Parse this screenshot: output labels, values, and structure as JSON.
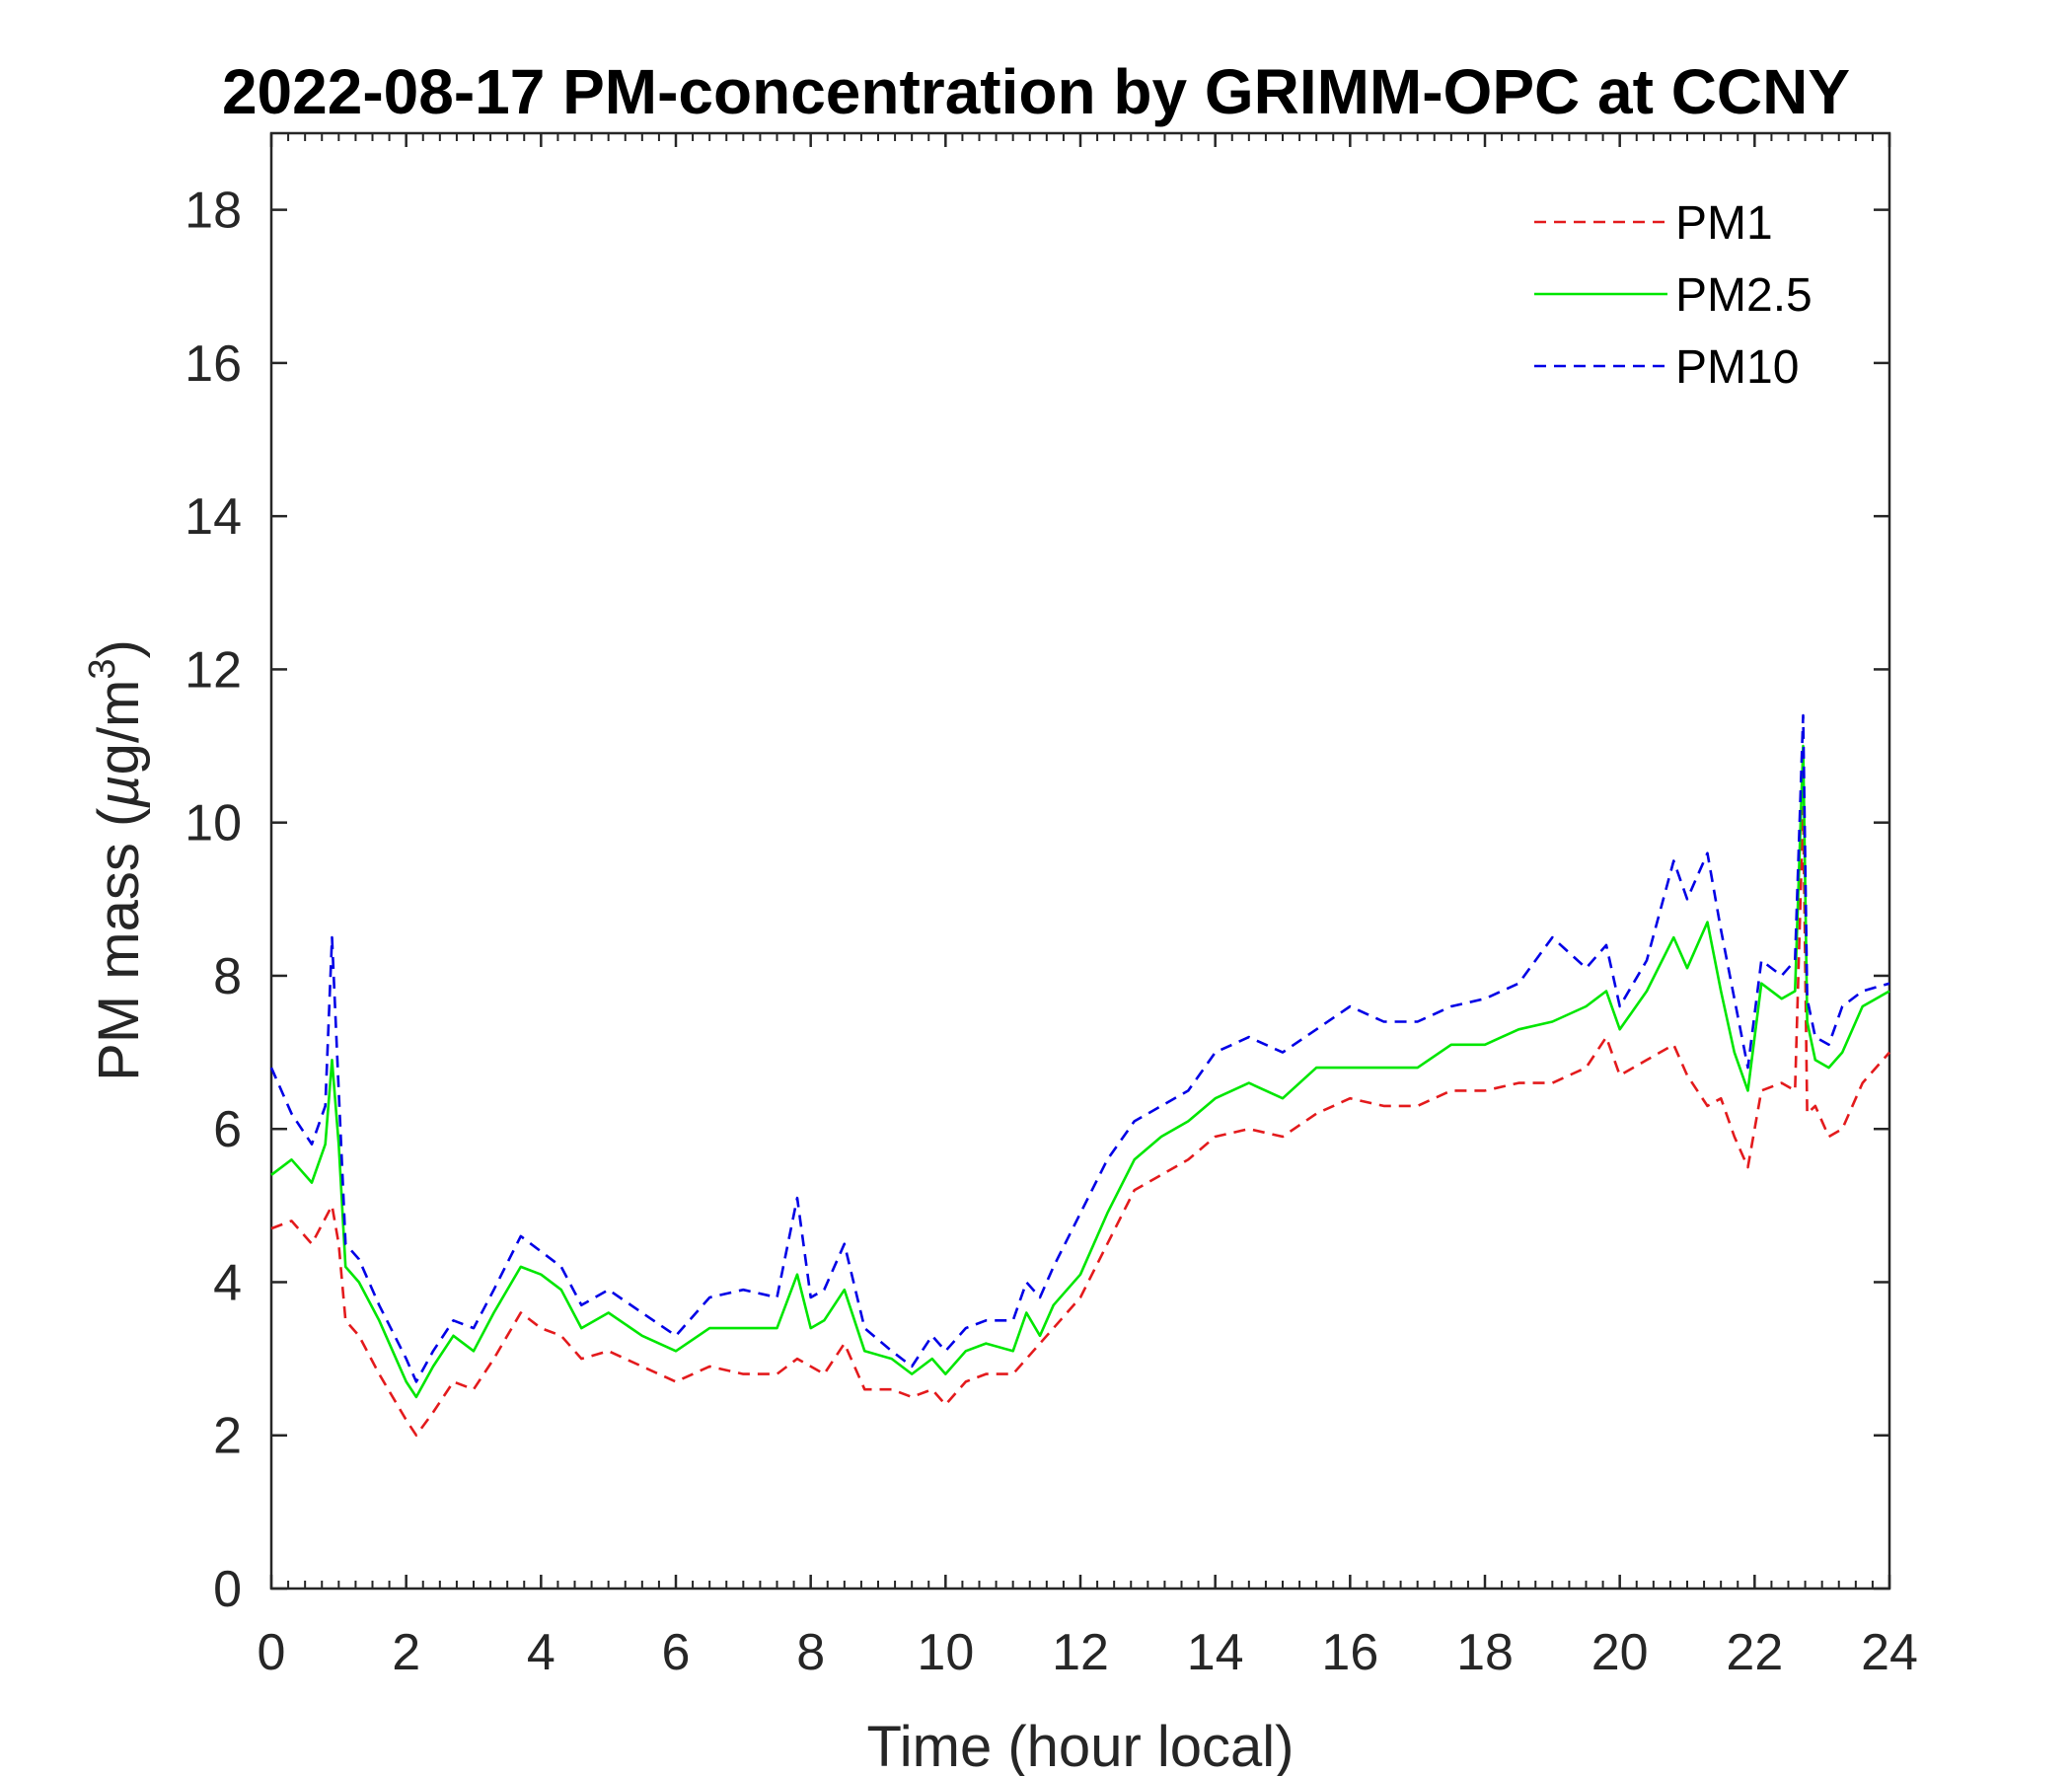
{
  "chart_data": {
    "type": "line",
    "title": "2022-08-17 PM-concentration by GRIMM-OPC at CCNY",
    "xlabel": "Time (hour local)",
    "ylabel": "PM mass (µg/m³)",
    "ylabel_parts": {
      "prefix": "PM mass (",
      "mu": "µ",
      "unit": "g/m",
      "exponent": "3",
      "suffix": ")"
    },
    "xlim": [
      0,
      24
    ],
    "ylim": [
      0,
      19
    ],
    "xticks": [
      0,
      2,
      4,
      6,
      8,
      10,
      12,
      14,
      16,
      18,
      20,
      22,
      24
    ],
    "yticks": [
      0,
      2,
      4,
      6,
      8,
      10,
      12,
      14,
      16,
      18
    ],
    "legend_location": "top-right",
    "series": [
      {
        "name": "PM1",
        "color": "#e31a1c",
        "style": "dashed",
        "x": [
          0,
          0.3,
          0.6,
          0.9,
          1.0,
          1.1,
          1.3,
          1.6,
          2.0,
          2.15,
          2.4,
          2.7,
          3.0,
          3.3,
          3.7,
          4.0,
          4.3,
          4.6,
          5.0,
          5.5,
          6.0,
          6.5,
          7.0,
          7.5,
          7.8,
          8.0,
          8.2,
          8.5,
          8.8,
          9.2,
          9.5,
          9.8,
          10.0,
          10.3,
          10.6,
          11.0,
          11.3,
          11.6,
          12.0,
          12.4,
          12.8,
          13.2,
          13.6,
          14.0,
          14.5,
          15.0,
          15.5,
          16.0,
          16.5,
          17.0,
          17.5,
          18.0,
          18.5,
          19.0,
          19.5,
          19.8,
          20.0,
          20.4,
          20.8,
          21.0,
          21.3,
          21.5,
          21.7,
          21.9,
          22.1,
          22.4,
          22.6,
          22.72,
          22.78,
          22.9,
          23.1,
          23.3,
          23.6,
          24.0
        ],
        "y": [
          4.7,
          4.8,
          4.5,
          5.0,
          4.5,
          3.5,
          3.3,
          2.8,
          2.2,
          2.0,
          2.3,
          2.7,
          2.6,
          3.0,
          3.6,
          3.4,
          3.3,
          3.0,
          3.1,
          2.9,
          2.7,
          2.9,
          2.8,
          2.8,
          3.0,
          2.9,
          2.8,
          3.2,
          2.6,
          2.6,
          2.5,
          2.6,
          2.4,
          2.7,
          2.8,
          2.8,
          3.1,
          3.4,
          3.8,
          4.5,
          5.2,
          5.4,
          5.6,
          5.9,
          6.0,
          5.9,
          6.2,
          6.4,
          6.3,
          6.3,
          6.5,
          6.5,
          6.6,
          6.6,
          6.8,
          7.2,
          6.7,
          6.9,
          7.1,
          6.7,
          6.3,
          6.4,
          5.9,
          5.5,
          6.5,
          6.6,
          6.5,
          10.2,
          6.2,
          6.3,
          5.9,
          6.0,
          6.6,
          7.0
        ]
      },
      {
        "name": "PM2.5",
        "color": "#00e600",
        "style": "solid",
        "x": [
          0,
          0.3,
          0.6,
          0.8,
          0.9,
          1.0,
          1.1,
          1.3,
          1.6,
          2.0,
          2.15,
          2.4,
          2.7,
          3.0,
          3.3,
          3.7,
          4.0,
          4.3,
          4.6,
          5.0,
          5.5,
          6.0,
          6.5,
          7.0,
          7.5,
          7.8,
          8.0,
          8.2,
          8.5,
          8.8,
          9.2,
          9.5,
          9.8,
          10.0,
          10.3,
          10.6,
          11.0,
          11.2,
          11.4,
          11.6,
          12.0,
          12.4,
          12.8,
          13.2,
          13.6,
          14.0,
          14.5,
          15.0,
          15.5,
          16.0,
          16.5,
          17.0,
          17.5,
          18.0,
          18.5,
          19.0,
          19.5,
          19.8,
          20.0,
          20.4,
          20.8,
          21.0,
          21.3,
          21.5,
          21.7,
          21.9,
          22.1,
          22.4,
          22.6,
          22.72,
          22.78,
          22.9,
          23.1,
          23.3,
          23.6,
          24.0
        ],
        "y": [
          5.4,
          5.6,
          5.3,
          5.8,
          6.9,
          5.8,
          4.2,
          4.0,
          3.5,
          2.7,
          2.5,
          2.9,
          3.3,
          3.1,
          3.6,
          4.2,
          4.1,
          3.9,
          3.4,
          3.6,
          3.3,
          3.1,
          3.4,
          3.4,
          3.4,
          4.1,
          3.4,
          3.5,
          3.9,
          3.1,
          3.0,
          2.8,
          3.0,
          2.8,
          3.1,
          3.2,
          3.1,
          3.6,
          3.3,
          3.7,
          4.1,
          4.9,
          5.6,
          5.9,
          6.1,
          6.4,
          6.6,
          6.4,
          6.8,
          6.8,
          6.8,
          6.8,
          7.1,
          7.1,
          7.3,
          7.4,
          7.6,
          7.8,
          7.3,
          7.8,
          8.5,
          8.1,
          8.7,
          7.8,
          7.0,
          6.5,
          7.9,
          7.7,
          7.8,
          11.0,
          7.4,
          6.9,
          6.8,
          7.0,
          7.6,
          7.8
        ]
      },
      {
        "name": "PM10",
        "color": "#0000e6",
        "style": "dashed",
        "x": [
          0,
          0.3,
          0.6,
          0.8,
          0.9,
          1.0,
          1.1,
          1.3,
          1.6,
          2.0,
          2.15,
          2.4,
          2.7,
          3.0,
          3.3,
          3.7,
          4.0,
          4.3,
          4.6,
          5.0,
          5.5,
          6.0,
          6.5,
          7.0,
          7.5,
          7.8,
          8.0,
          8.2,
          8.5,
          8.8,
          9.2,
          9.5,
          9.8,
          10.0,
          10.3,
          10.6,
          11.0,
          11.2,
          11.4,
          11.6,
          12.0,
          12.4,
          12.8,
          13.2,
          13.6,
          14.0,
          14.5,
          15.0,
          15.5,
          16.0,
          16.5,
          17.0,
          17.5,
          18.0,
          18.5,
          19.0,
          19.5,
          19.8,
          20.0,
          20.4,
          20.8,
          21.0,
          21.3,
          21.5,
          21.7,
          21.9,
          22.1,
          22.4,
          22.6,
          22.72,
          22.78,
          22.9,
          23.1,
          23.3,
          23.6,
          24.0
        ],
        "y": [
          6.8,
          6.2,
          5.8,
          6.3,
          8.5,
          6.5,
          4.5,
          4.3,
          3.7,
          3.0,
          2.7,
          3.1,
          3.5,
          3.4,
          3.9,
          4.6,
          4.4,
          4.2,
          3.7,
          3.9,
          3.6,
          3.3,
          3.8,
          3.9,
          3.8,
          5.1,
          3.8,
          3.9,
          4.5,
          3.4,
          3.1,
          2.9,
          3.3,
          3.1,
          3.4,
          3.5,
          3.5,
          4.0,
          3.8,
          4.2,
          4.9,
          5.6,
          6.1,
          6.3,
          6.5,
          7.0,
          7.2,
          7.0,
          7.3,
          7.6,
          7.4,
          7.4,
          7.6,
          7.7,
          7.9,
          8.5,
          8.1,
          8.4,
          7.6,
          8.2,
          9.5,
          9.0,
          9.6,
          8.6,
          7.7,
          6.8,
          8.2,
          8.0,
          8.2,
          11.4,
          7.7,
          7.2,
          7.1,
          7.6,
          7.8,
          7.9
        ]
      }
    ]
  }
}
